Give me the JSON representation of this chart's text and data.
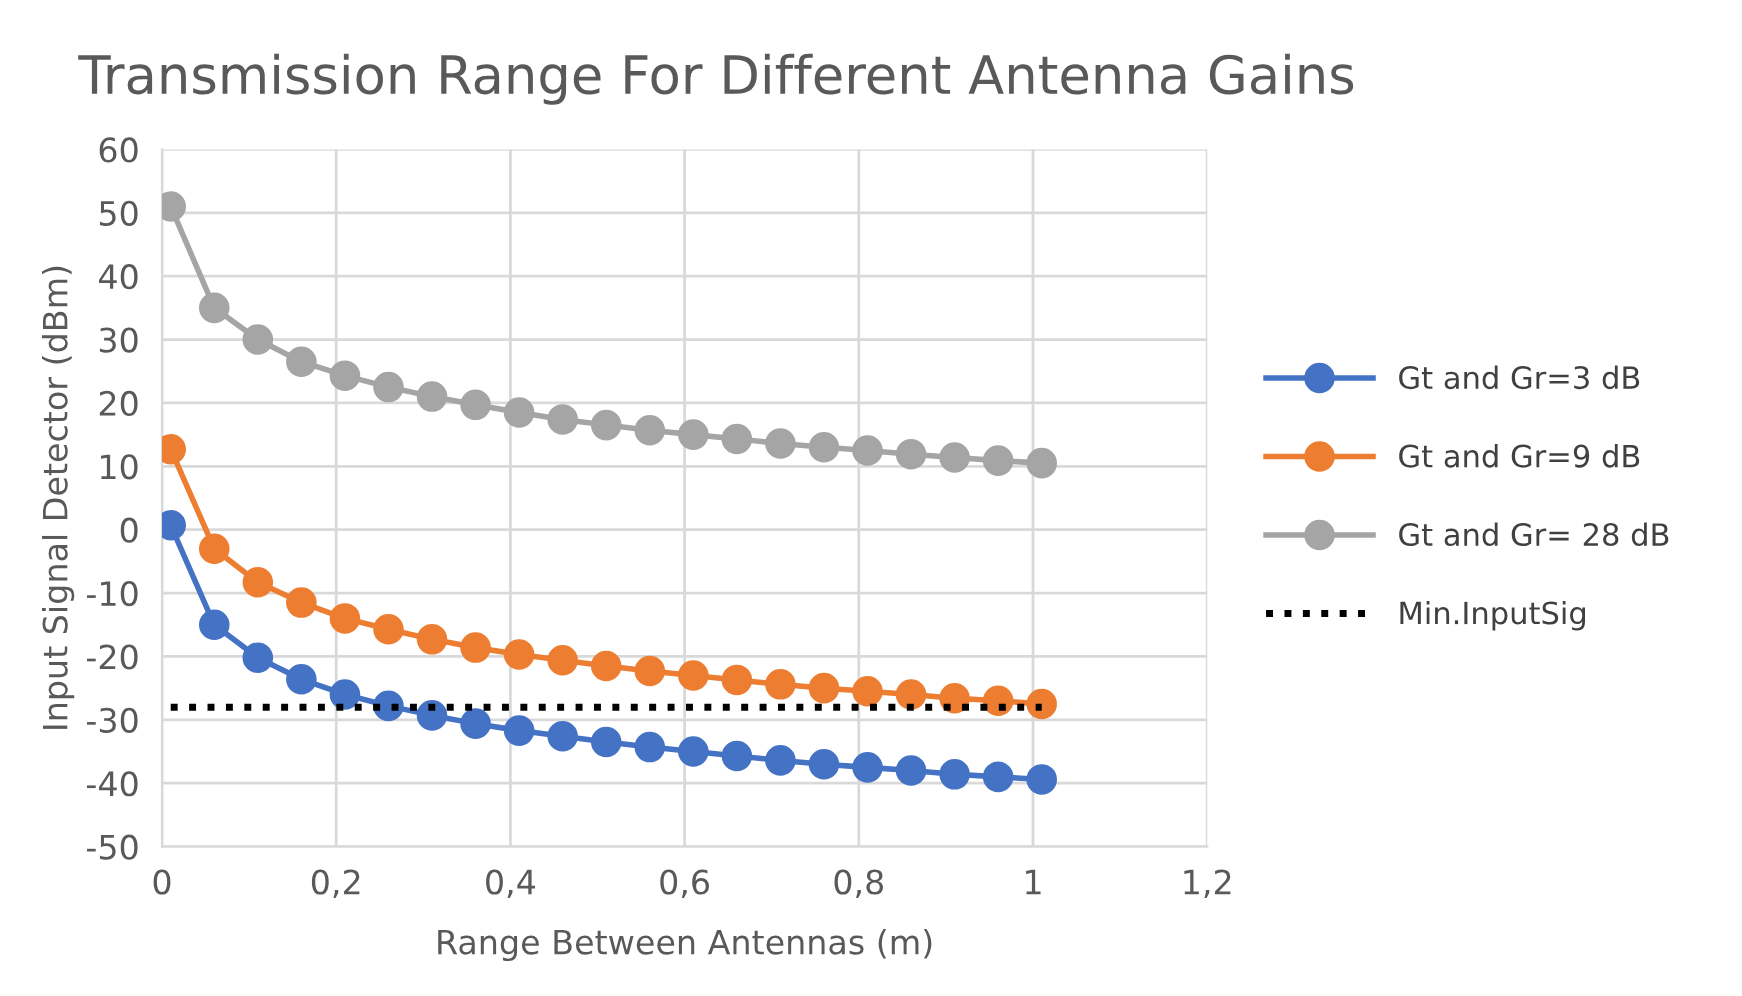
{
  "chart_data": {
    "type": "line",
    "title": "Transmission Range For Different Antenna Gains",
    "xlabel": "Range Between Antennas (m)",
    "ylabel": "Input Signal Detector (dBm)",
    "x": [
      0.01,
      0.06,
      0.11,
      0.16,
      0.21,
      0.26,
      0.31,
      0.36,
      0.41,
      0.46,
      0.51,
      0.56,
      0.61,
      0.66,
      0.71,
      0.76,
      0.81,
      0.86,
      0.91,
      0.96,
      1.01
    ],
    "series": [
      {
        "name": "Gt and Gr=3 dB",
        "color": "#4472c4",
        "marker": "circle",
        "values": [
          0.7,
          -15,
          -20.2,
          -23.6,
          -26,
          -27.8,
          -29.3,
          -30.6,
          -31.7,
          -32.6,
          -33.5,
          -34.3,
          -35,
          -35.7,
          -36.4,
          -37,
          -37.5,
          -38,
          -38.6,
          -39,
          -39.4
        ]
      },
      {
        "name": "Gt and Gr=9 dB",
        "color": "#ed7d31",
        "marker": "circle",
        "values": [
          12.7,
          -3,
          -8.3,
          -11.5,
          -14,
          -15.7,
          -17.3,
          -18.6,
          -19.7,
          -20.6,
          -21.5,
          -22.3,
          -23,
          -23.7,
          -24.4,
          -25,
          -25.5,
          -26,
          -26.6,
          -27,
          -27.5
        ]
      },
      {
        "name": "Gt and Gr= 28 dB",
        "color": "#a5a5a5",
        "marker": "circle",
        "values": [
          51,
          35,
          30,
          26.5,
          24.3,
          22.5,
          21,
          19.7,
          18.5,
          17.4,
          16.5,
          15.7,
          15,
          14.3,
          13.6,
          13,
          12.5,
          11.9,
          11.4,
          10.9,
          10.5
        ]
      },
      {
        "name": "Min.InputSig",
        "color": "#000000",
        "marker": "none",
        "line_style": "dotted",
        "x": [
          0.01,
          1.01
        ],
        "values": [
          -28,
          -28
        ]
      }
    ],
    "xlim": [
      0,
      1.2
    ],
    "xticks": [
      0,
      {
        "value": 0.2,
        "label": "0,2"
      },
      {
        "value": 0.4,
        "label": "0,4"
      },
      {
        "value": 0.6,
        "label": "0,6"
      },
      {
        "value": 0.8,
        "label": "0,8"
      },
      1,
      {
        "value": 1.2,
        "label": "1,2"
      }
    ],
    "ylim": [
      -50,
      60
    ],
    "yticks": [
      -50,
      -40,
      -30,
      -20,
      -10,
      0,
      10,
      20,
      30,
      40,
      50,
      60
    ],
    "grid": true,
    "legend": "right"
  }
}
